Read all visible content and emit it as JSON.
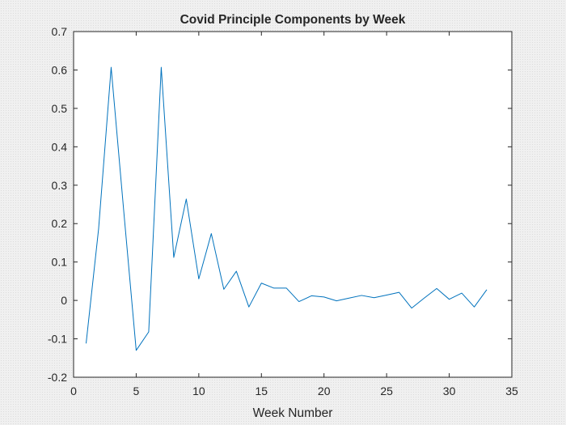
{
  "chart_data": {
    "type": "line",
    "title": "Covid Principle Components by Week",
    "xlabel": "Week Number",
    "ylabel": "",
    "xlim": [
      0,
      35
    ],
    "ylim": [
      -0.2,
      0.7
    ],
    "xticks": [
      0,
      5,
      10,
      15,
      20,
      25,
      30,
      35
    ],
    "yticks": [
      -0.2,
      -0.1,
      0,
      0.1,
      0.2,
      0.3,
      0.4,
      0.5,
      0.6,
      0.7
    ],
    "xtick_labels": [
      "0",
      "5",
      "10",
      "15",
      "20",
      "25",
      "30",
      "35"
    ],
    "ytick_labels": [
      "-0.2",
      "-0.1",
      "0",
      "0.1",
      "0.2",
      "0.3",
      "0.4",
      "0.5",
      "0.6",
      "0.7"
    ],
    "grid": false,
    "series": [
      {
        "color": "#0072bd",
        "x": [
          1,
          2,
          3,
          4,
          5,
          6,
          7,
          8,
          9,
          10,
          11,
          12,
          13,
          14,
          15,
          16,
          17,
          18,
          19,
          20,
          21,
          22,
          23,
          24,
          25,
          26,
          27,
          28,
          29,
          30,
          31,
          32,
          33
        ],
        "y": [
          -0.112,
          0.187,
          0.607,
          0.235,
          -0.13,
          -0.082,
          0.607,
          0.112,
          0.264,
          0.056,
          0.174,
          0.029,
          0.076,
          -0.017,
          0.045,
          0.032,
          0.032,
          -0.003,
          0.012,
          0.009,
          -0.001,
          0.006,
          0.013,
          0.007,
          0.014,
          0.021,
          -0.02,
          0.006,
          0.031,
          0.003,
          0.019,
          -0.017,
          0.028
        ]
      }
    ]
  }
}
